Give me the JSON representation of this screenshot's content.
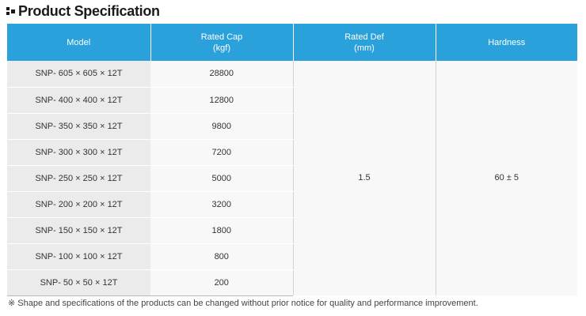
{
  "title": "Product Specification",
  "table": {
    "headers": {
      "model": "Model",
      "rated_cap_line1": "Rated Cap",
      "rated_cap_line2": "(kgf)",
      "rated_def_line1": "Rated Def",
      "rated_def_line2": "(mm)",
      "hardness": "Hardness"
    },
    "rows": [
      {
        "model": "SNP- 605 × 605 × 12T",
        "rated_cap": "28800"
      },
      {
        "model": "SNP- 400 × 400 × 12T",
        "rated_cap": "12800"
      },
      {
        "model": "SNP- 350 × 350 × 12T",
        "rated_cap": "9800"
      },
      {
        "model": "SNP- 300 × 300 × 12T",
        "rated_cap": "7200"
      },
      {
        "model": "SNP- 250 × 250 × 12T",
        "rated_cap": "5000"
      },
      {
        "model": "SNP- 200 × 200 × 12T",
        "rated_cap": "3200"
      },
      {
        "model": "SNP- 150 × 150 × 12T",
        "rated_cap": "1800"
      },
      {
        "model": "SNP- 100 × 100 × 12T",
        "rated_cap": "800"
      },
      {
        "model": "SNP- 50 × 50 × 12T",
        "rated_cap": "200"
      }
    ],
    "rated_def": "1.5",
    "hardness": "60 ± 5"
  },
  "footnote": "※ Shape and specifications of the products can be changed without prior notice for quality and performance improvement.",
  "colors": {
    "header_bg": "#2ba1dc",
    "model_col_bg": "#ebebeb",
    "value_col_bg": "#f8f8f8"
  },
  "icons": [
    "title-bullet-icon"
  ]
}
